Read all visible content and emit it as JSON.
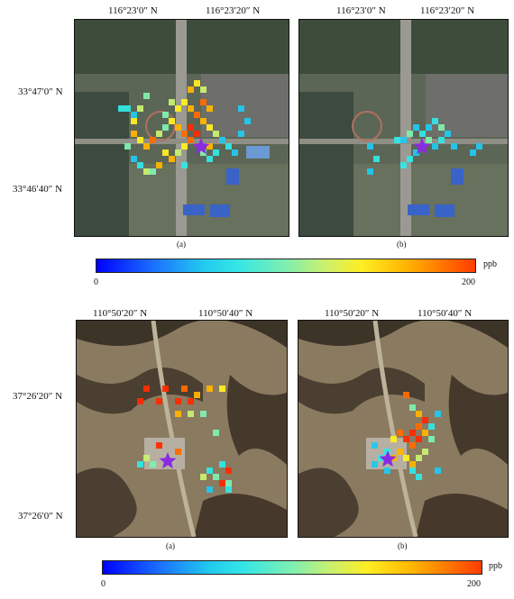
{
  "figure_top": {
    "lon_labels": [
      "116°23′0″ N",
      "116°23′20″ N",
      "116°23′0″ N",
      "116°23′20″ N"
    ],
    "lat_labels": [
      "33°47′0″ N",
      "33°46′40″ N"
    ],
    "captions": [
      "(a)",
      "(b)"
    ]
  },
  "colorbar_top": {
    "min": "0",
    "max": "200",
    "unit": "ppb"
  },
  "figure_bottom": {
    "lon_labels": [
      "110°50′20″ N",
      "110°50′40″ N",
      "110°50′20″ N",
      "110°50′40″ N"
    ],
    "lat_labels": [
      "37°26′20″ N",
      "37°26′0″ N"
    ],
    "captions": [
      "(a)",
      "(b)"
    ]
  },
  "colorbar_bottom": {
    "min": "0",
    "max": "200",
    "unit": "ppb"
  },
  "colors": {
    "star": "#8a2be2",
    "map_urban": "#5c6656",
    "map_mountain": "#8a7a60"
  }
}
